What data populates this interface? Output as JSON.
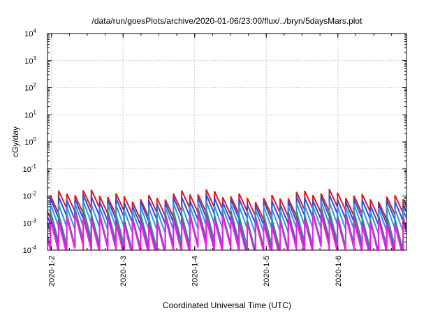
{
  "chart_data": {
    "type": "line",
    "title": "/data/run/goesPlots/archive/2020-01-06/23:00/flux/../bryn/5daysMars.plot",
    "xlabel": "Coordinated Universal Time (UTC)",
    "ylabel": "cGy/day",
    "yscale": "log",
    "ylim": [
      0.0001,
      10000
    ],
    "xlim": [
      "2020-01-01T22:40",
      "2020-01-06T23:00"
    ],
    "x_ticks": [
      "2020-1-2",
      "2020-1-3",
      "2020-1-4",
      "2020-1-5",
      "2020-1-6"
    ],
    "y_ticks": [
      {
        "base": "10",
        "exp": "-4"
      },
      {
        "base": "10",
        "exp": "-3"
      },
      {
        "base": "10",
        "exp": "-2"
      },
      {
        "base": "10",
        "exp": "-1"
      },
      {
        "base": "10",
        "exp": "0"
      },
      {
        "base": "10",
        "exp": "1"
      },
      {
        "base": "10",
        "exp": "2"
      },
      {
        "base": "10",
        "exp": "3"
      },
      {
        "base": "10",
        "exp": "4"
      }
    ],
    "grid": true,
    "legend": "none",
    "sawtooth_period_hours": 2.75,
    "series": [
      {
        "color": "#e8141c",
        "peak": 0.0105,
        "trough": 0.0024,
        "spread": 0.25
      },
      {
        "color": "#1f4fe0",
        "peak": 0.007,
        "trough": 0.0014,
        "spread": 0.22
      },
      {
        "color": "#3a8ee6",
        "peak": 0.0042,
        "trough": 0.00065,
        "spread": 0.2
      },
      {
        "color": "#1aa37a",
        "peak": 0.0022,
        "trough": 0.00016,
        "spread": 0.25
      },
      {
        "color": "#8a3fc8",
        "peak": 0.0017,
        "trough": 0.00012,
        "spread": 0.25
      },
      {
        "color": "#f01ee6",
        "peak": 0.0013,
        "trough": 9e-05,
        "spread": 0.25
      }
    ]
  }
}
